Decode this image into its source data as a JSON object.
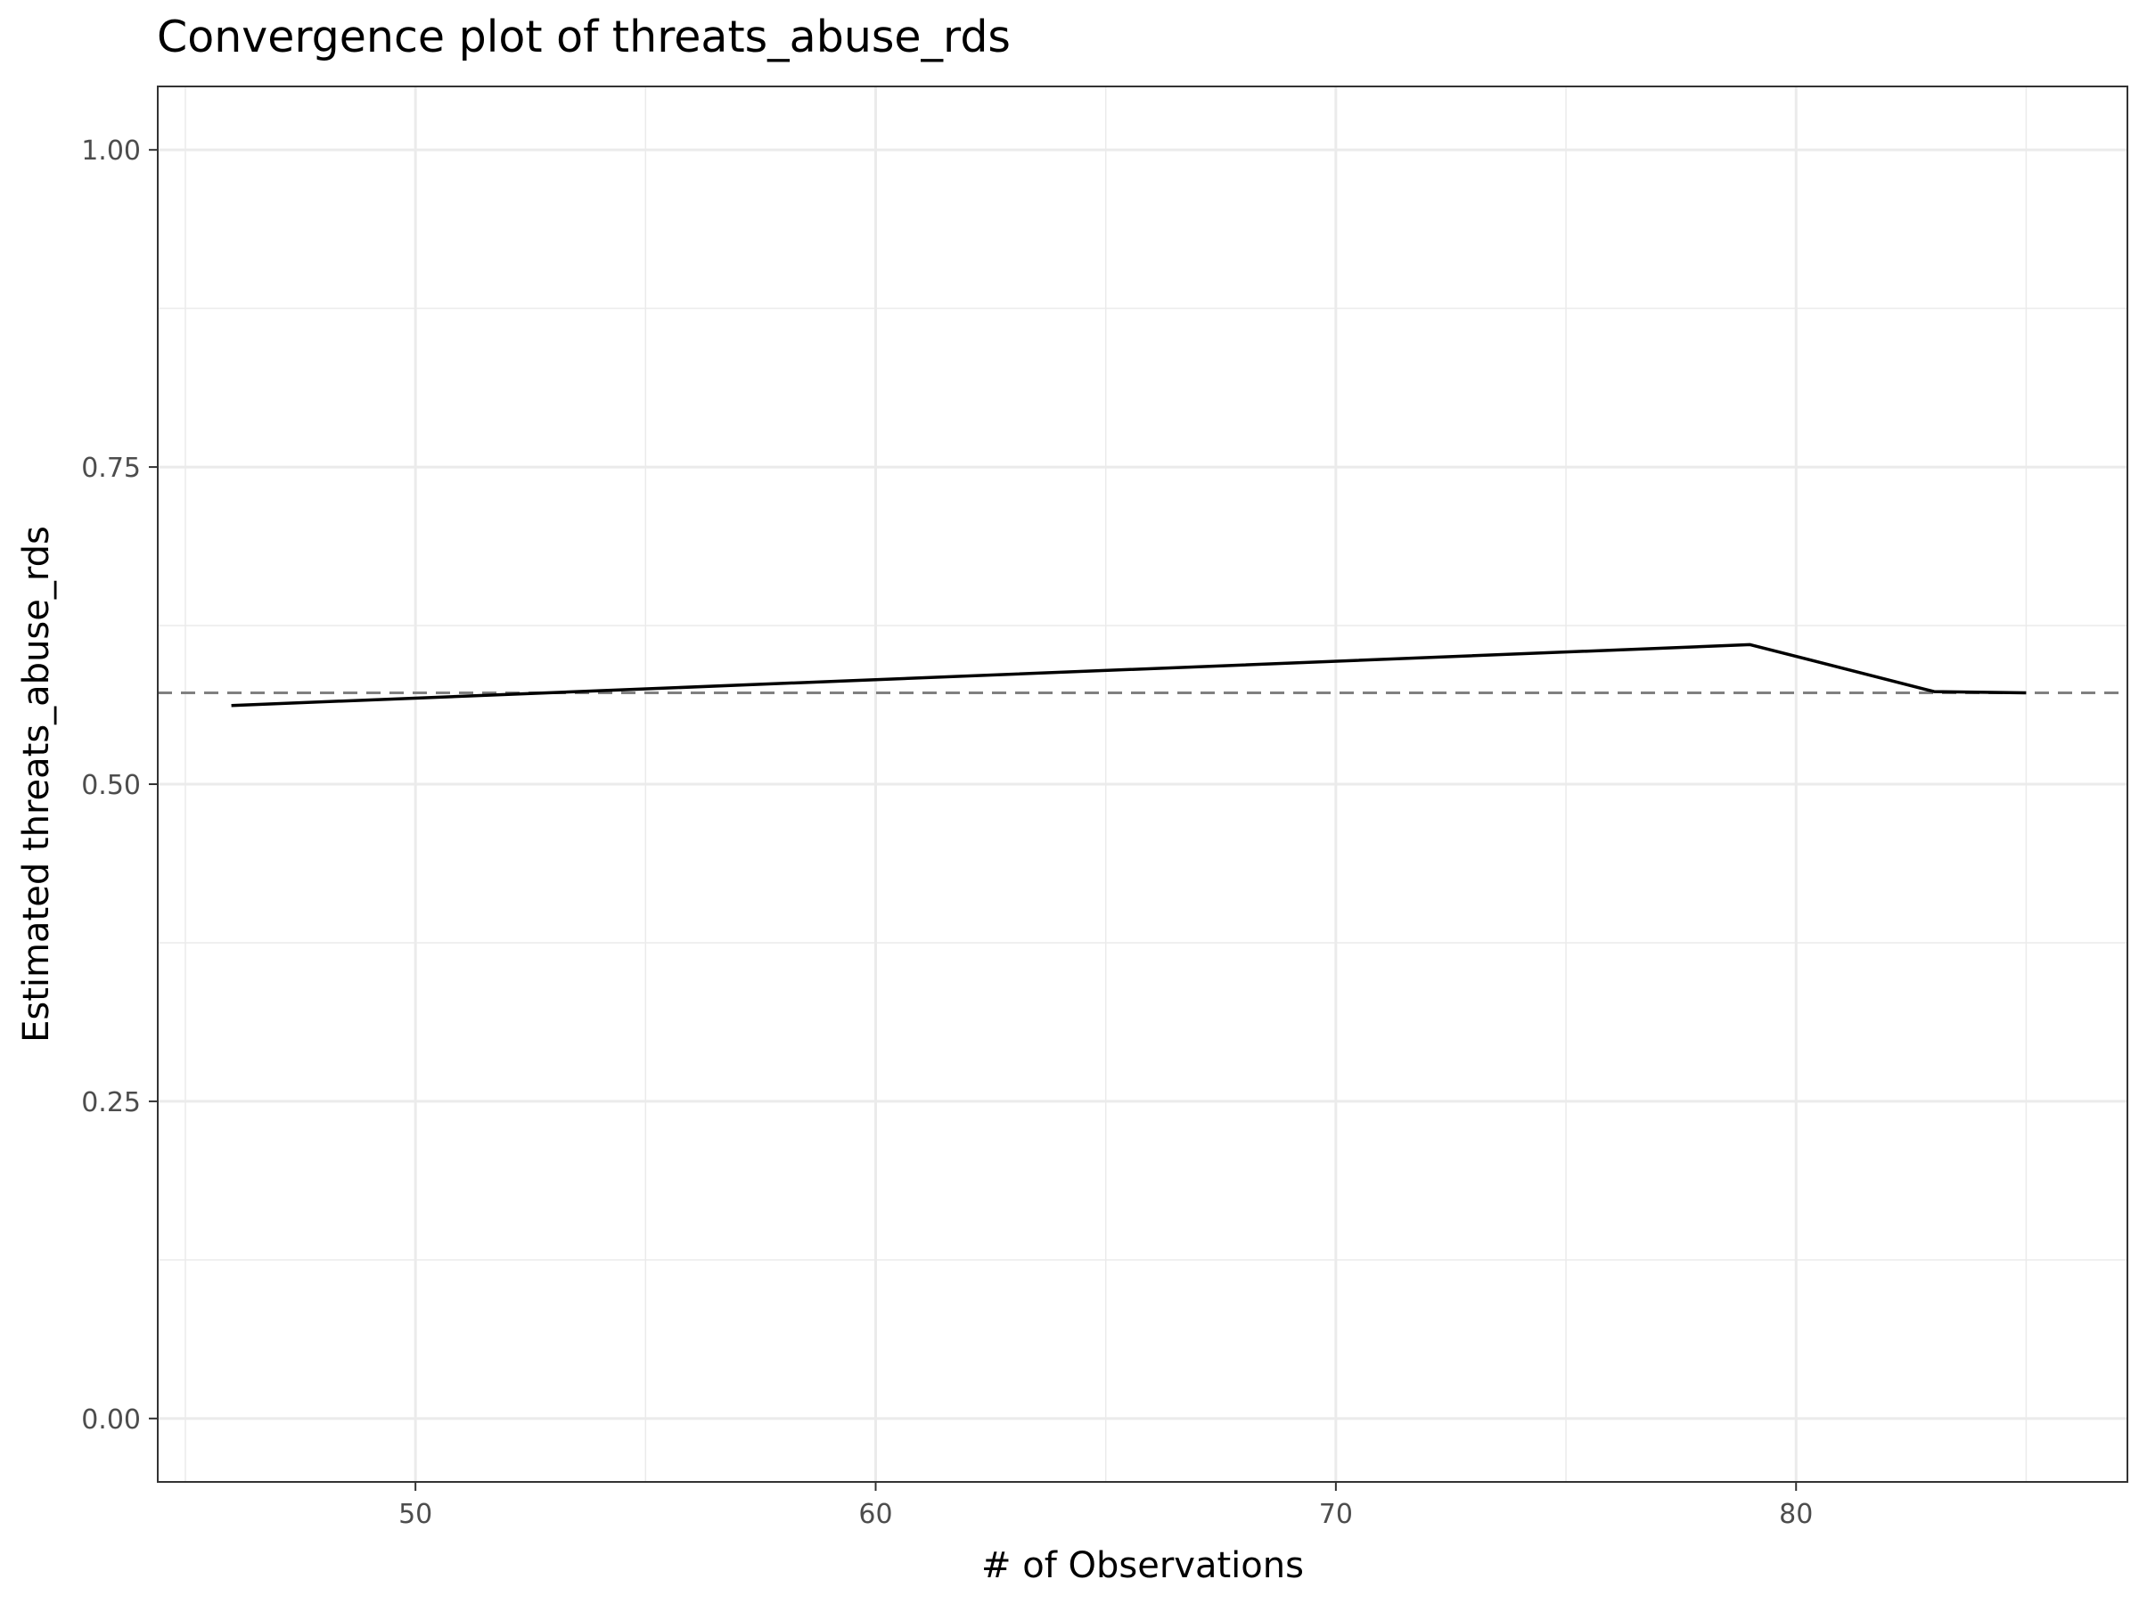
{
  "chart_data": {
    "type": "line",
    "title": "Convergence plot of threats_abuse_rds",
    "xlabel": "# of Observations",
    "ylabel": "Estimated threats_abuse_rds",
    "xlim": [
      44.4,
      87.2
    ],
    "ylim": [
      -0.05,
      1.05
    ],
    "x_ticks": [
      50,
      60,
      70,
      80
    ],
    "x_tick_labels": [
      "50",
      "60",
      "70",
      "80"
    ],
    "x_minor_ticks": [
      45,
      55,
      65,
      75,
      85
    ],
    "y_ticks": [
      0,
      0.25,
      0.5,
      0.75,
      1.0
    ],
    "y_tick_labels": [
      "0.00",
      "0.25",
      "0.50",
      "0.75",
      "1.00"
    ],
    "y_minor_ticks": [
      0.125,
      0.375,
      0.625,
      0.875
    ],
    "grid": true,
    "series": [
      {
        "x": [
          46,
          79,
          83,
          85
        ],
        "y": [
          0.562,
          0.61,
          0.573,
          0.572
        ],
        "color": "#000000",
        "style": "solid"
      }
    ],
    "reference_line": {
      "y": 0.572,
      "color": "#808080",
      "style": "dashed"
    },
    "colors": {
      "grid": "#ebebeb",
      "panel_border": "#333333",
      "tick_label": "#4d4d4d"
    }
  }
}
